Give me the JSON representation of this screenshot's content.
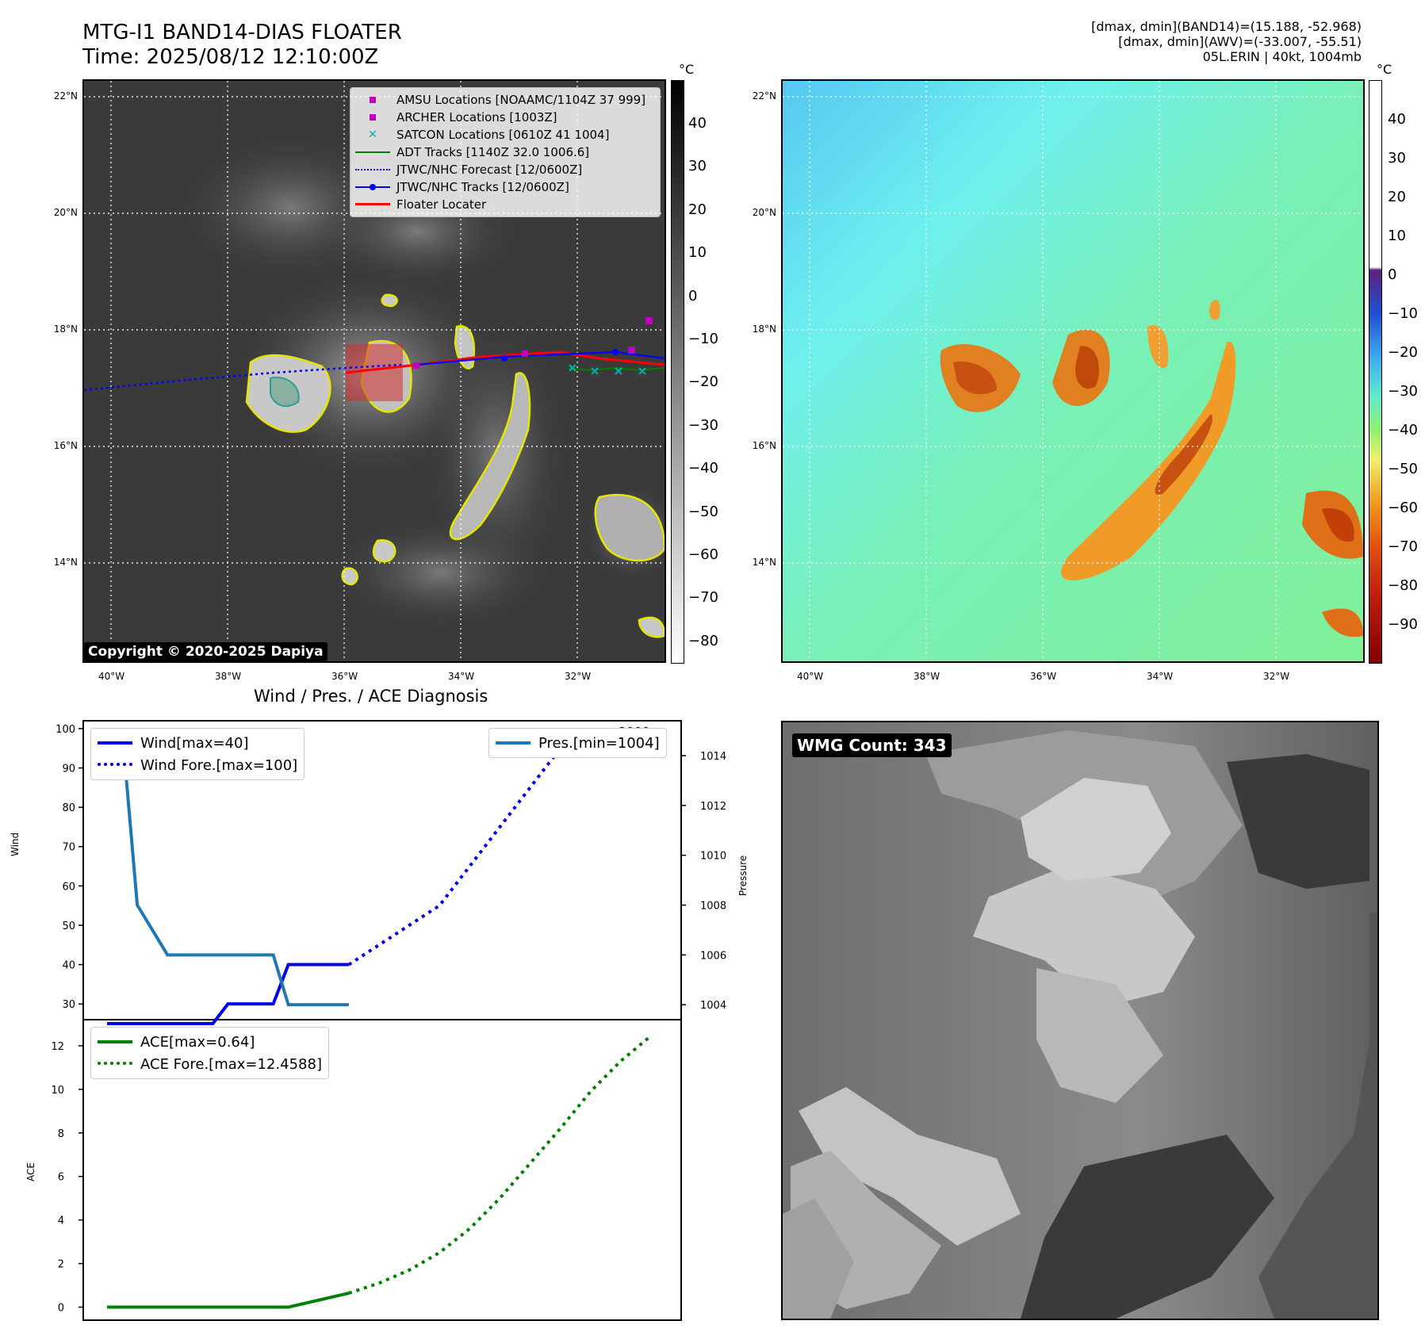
{
  "header": {
    "title_line1": "MTG-I1 BAND14-DIAS FLOATER",
    "title_line2": "Time: 2025/08/12 12:10:00Z",
    "info_line1": "[dmax, dmin](BAND14)=(15.188, -52.968)",
    "info_line2": "[dmax, dmin](AWV)=(-33.007, -55.51)",
    "info_line3": "05L.ERIN | 40kt, 1004mb"
  },
  "map_axes": {
    "lat_labels": [
      "22°N",
      "20°N",
      "18°N",
      "16°N",
      "14°N"
    ],
    "lon_labels": [
      "40°W",
      "38°W",
      "36°W",
      "34°W",
      "32°W"
    ]
  },
  "ir_panel": {
    "copyright": "Copyright © 2020-2025 Dapiya",
    "colorbar_unit": "°C",
    "colorbar_ticks": [
      "40",
      "30",
      "20",
      "10",
      "0",
      "−10",
      "−20",
      "−30",
      "−40",
      "−50",
      "−60",
      "−70",
      "−80"
    ],
    "legend": [
      {
        "label": "AMSU Locations [NOAAMC/1104Z 37 999]",
        "color": "#c000c0",
        "symbol": "square"
      },
      {
        "label": "ARCHER Locations [1003Z]",
        "color": "#c000c0",
        "symbol": "square"
      },
      {
        "label": "SATCON Locations [0610Z 41 1004]",
        "color": "#00b0b0",
        "symbol": "x"
      },
      {
        "label": "ADT Tracks [1140Z 32.0 1006.6]",
        "color": "#008000",
        "symbol": "line"
      },
      {
        "label": "JTWC/NHC Forecast [12/0600Z]",
        "color": "#0000ff",
        "symbol": "dotted"
      },
      {
        "label": "JTWC/NHC Tracks [12/0600Z]",
        "color": "#0000ff",
        "symbol": "line-dot"
      },
      {
        "label": "Floater Locater",
        "color": "#ff0000",
        "symbol": "line"
      }
    ]
  },
  "awv_panel": {
    "colorbar_unit": "°C",
    "colorbar_ticks": [
      "40",
      "30",
      "20",
      "10",
      "0",
      "−10",
      "−20",
      "−30",
      "−40",
      "−50",
      "−60",
      "−70",
      "−80",
      "−90"
    ]
  },
  "wmg_panel": {
    "badge": "WMG Count: 343"
  },
  "chart_data": [
    {
      "type": "line",
      "title": "Wind / Pres. / ACE Diagnosis",
      "ylabel": "Wind",
      "y2label": "Pressure",
      "ylim": [
        26,
        102
      ],
      "y2lim": [
        1003.4,
        1015.4
      ],
      "yticks": [
        30,
        40,
        50,
        60,
        70,
        80,
        90,
        100
      ],
      "y2ticks": [
        1004,
        1006,
        1008,
        1010,
        1012,
        1014
      ],
      "x": [
        0,
        1,
        2,
        3,
        4,
        5,
        6,
        7,
        8,
        9,
        10,
        11,
        12,
        13,
        14,
        15,
        16,
        17,
        18,
        19,
        20,
        21,
        22,
        23,
        24,
        25,
        26,
        27,
        28,
        29,
        30,
        31,
        32,
        33,
        34,
        35,
        36
      ],
      "series": [
        {
          "name": "Wind[max=40]",
          "style": "solid",
          "color": "#0000ee",
          "x": [
            0,
            1,
            2,
            3,
            4,
            5,
            6,
            7,
            8,
            9,
            10,
            11,
            12,
            13,
            14,
            15,
            16
          ],
          "values": [
            25,
            25,
            25,
            25,
            25,
            25,
            25,
            25,
            30,
            30,
            30,
            30,
            40,
            40,
            40,
            40,
            40
          ]
        },
        {
          "name": "Wind Fore.[max=100]",
          "style": "dotted",
          "color": "#0000ee",
          "x": [
            16,
            18,
            20,
            22,
            24,
            26,
            28,
            30,
            32,
            34,
            36
          ],
          "values": [
            40,
            45,
            50,
            55,
            65,
            75,
            85,
            95,
            95,
            100,
            100
          ]
        },
        {
          "name": "Pres.[min=1004]",
          "style": "solid",
          "color": "#1f77b4",
          "axis": "right",
          "x": [
            0,
            1,
            2,
            3,
            4,
            5,
            6,
            7,
            8,
            9,
            10,
            11,
            12,
            13,
            14,
            15,
            16
          ],
          "values": [
            1015,
            1015,
            1008,
            1007,
            1006,
            1006,
            1006,
            1006,
            1006,
            1006,
            1006,
            1006,
            1004,
            1004,
            1004,
            1004,
            1004
          ]
        }
      ],
      "legend_left": [
        "Wind[max=40]",
        "Wind Fore.[max=100]"
      ],
      "legend_right": [
        "Pres.[min=1004]"
      ]
    },
    {
      "type": "line",
      "ylabel": "ACE",
      "ylim": [
        -0.6,
        13.2
      ],
      "yticks": [
        0,
        2,
        4,
        6,
        8,
        10,
        12
      ],
      "series": [
        {
          "name": "ACE[max=0.64]",
          "style": "solid",
          "color": "#008000",
          "x": [
            0,
            4,
            8,
            12,
            16
          ],
          "values": [
            0,
            0,
            0,
            0,
            0.64
          ]
        },
        {
          "name": "ACE Fore.[max=12.4588]",
          "style": "dotted",
          "color": "#008000",
          "x": [
            16,
            18,
            20,
            22,
            24,
            26,
            28,
            30,
            32,
            34,
            36
          ],
          "values": [
            0.64,
            1.1,
            1.7,
            2.5,
            3.6,
            5.0,
            6.6,
            8.2,
            9.9,
            11.3,
            12.4588
          ]
        }
      ]
    }
  ]
}
